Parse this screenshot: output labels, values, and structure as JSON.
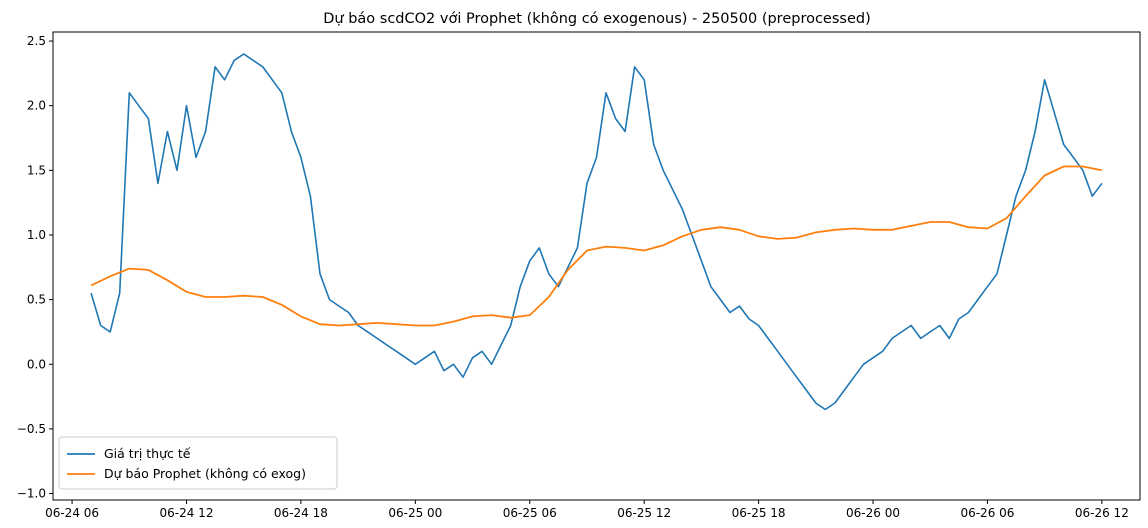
{
  "chart_data": {
    "type": "line",
    "title": "Dự báo scdCO2 với Prophet (không có exogenous) - 250500 (preprocessed)",
    "xlabel": "",
    "ylabel": "",
    "x_ticks": [
      "06-24 06",
      "06-24 12",
      "06-24 18",
      "06-25 00",
      "06-25 06",
      "06-25 12",
      "06-25 18",
      "06-26 00",
      "06-26 06",
      "06-26 12"
    ],
    "xlim": [
      "06-24 05:00",
      "06-26 14:00"
    ],
    "y_ticks": [
      "−1.0",
      "−0.5",
      "0.0",
      "0.5",
      "1.0",
      "1.5",
      "2.0",
      "2.5"
    ],
    "ylim": [
      -1.05,
      2.57
    ],
    "grid": false,
    "legend_position": "lower-left",
    "series": [
      {
        "name": "Giá trị thực tế",
        "color": "#1f77b4",
        "x_hours": [
          7.0,
          7.5,
          8.0,
          8.5,
          9.0,
          9.5,
          10.0,
          10.5,
          11.0,
          11.5,
          12.0,
          12.5,
          13.0,
          13.5,
          14.0,
          14.5,
          15.0,
          16.0,
          17.0,
          17.5,
          18.0,
          18.5,
          19.0,
          19.5,
          20.0,
          20.5,
          21.0,
          21.5,
          22.0,
          22.5,
          23.0,
          23.5,
          24.0,
          24.5,
          25.0,
          25.5,
          26.0,
          26.5,
          27.0,
          27.5,
          28.0,
          28.5,
          29.0,
          29.5,
          30.0,
          30.5,
          31.0,
          31.5,
          32.0,
          32.5,
          33.0,
          33.5,
          34.0,
          34.5,
          35.0,
          35.5,
          36.0,
          36.5,
          37.0,
          38.0,
          38.5,
          39.0,
          39.5,
          40.0,
          40.5,
          41.0,
          41.5,
          42.0,
          42.5,
          43.0,
          43.5,
          44.0,
          44.5,
          45.0,
          45.5,
          46.0,
          46.5,
          47.0,
          47.5,
          48.0,
          48.5,
          49.0,
          49.5,
          50.0,
          50.5,
          51.0,
          51.5,
          52.0,
          52.5,
          53.0,
          53.5,
          54.0,
          54.5,
          55.0,
          55.5,
          56.0,
          56.5,
          57.0,
          58.0,
          58.5,
          59.0,
          59.5,
          60.0
        ],
        "values": [
          0.55,
          0.3,
          0.25,
          0.55,
          2.1,
          2.0,
          1.9,
          1.4,
          1.8,
          1.5,
          2.0,
          1.6,
          1.8,
          2.3,
          2.2,
          2.35,
          2.4,
          2.3,
          2.1,
          1.8,
          1.6,
          1.3,
          0.7,
          0.5,
          0.45,
          0.4,
          0.3,
          0.25,
          0.2,
          0.15,
          0.1,
          0.05,
          0.0,
          0.05,
          0.1,
          -0.05,
          0.0,
          -0.1,
          0.05,
          0.1,
          0.0,
          0.15,
          0.3,
          0.6,
          0.8,
          0.9,
          0.7,
          0.6,
          0.75,
          0.9,
          1.4,
          1.6,
          2.1,
          1.9,
          1.8,
          2.3,
          2.2,
          1.7,
          1.5,
          1.2,
          1.0,
          0.8,
          0.6,
          0.5,
          0.4,
          0.45,
          0.35,
          0.3,
          0.2,
          0.1,
          0.0,
          -0.1,
          -0.2,
          -0.3,
          -0.35,
          -0.3,
          -0.2,
          -0.1,
          0.0,
          0.05,
          0.1,
          0.2,
          0.25,
          0.3,
          0.2,
          0.25,
          0.3,
          0.2,
          0.35,
          0.4,
          0.5,
          0.6,
          0.7,
          1.0,
          1.3,
          1.5,
          1.8,
          2.2,
          1.7,
          1.6,
          1.5,
          1.3,
          1.4
        ]
      },
      {
        "name": "Dự báo Prophet (không có exog)",
        "color": "#ff7f0e",
        "x_hours": [
          7,
          8,
          9,
          10,
          11,
          12,
          13,
          14,
          15,
          16,
          17,
          18,
          19,
          20,
          21,
          22,
          23,
          24,
          25,
          26,
          27,
          28,
          29,
          30,
          31,
          32,
          33,
          34,
          35,
          36,
          37,
          38,
          39,
          40,
          41,
          42,
          43,
          44,
          45,
          46,
          47,
          48,
          49,
          50,
          51,
          52,
          53,
          54,
          55,
          56,
          57,
          58,
          59,
          60
        ],
        "values": [
          0.61,
          0.68,
          0.74,
          0.73,
          0.65,
          0.56,
          0.52,
          0.52,
          0.53,
          0.52,
          0.46,
          0.37,
          0.31,
          0.3,
          0.31,
          0.32,
          0.31,
          0.3,
          0.3,
          0.33,
          0.37,
          0.38,
          0.36,
          0.38,
          0.52,
          0.73,
          0.88,
          0.91,
          0.9,
          0.88,
          0.92,
          0.99,
          1.04,
          1.06,
          1.04,
          0.99,
          0.97,
          0.98,
          1.02,
          1.04,
          1.05,
          1.04,
          1.04,
          1.07,
          1.1,
          1.1,
          1.06,
          1.05,
          1.13,
          1.3,
          1.46,
          1.53,
          1.53,
          1.5
        ]
      }
    ]
  }
}
